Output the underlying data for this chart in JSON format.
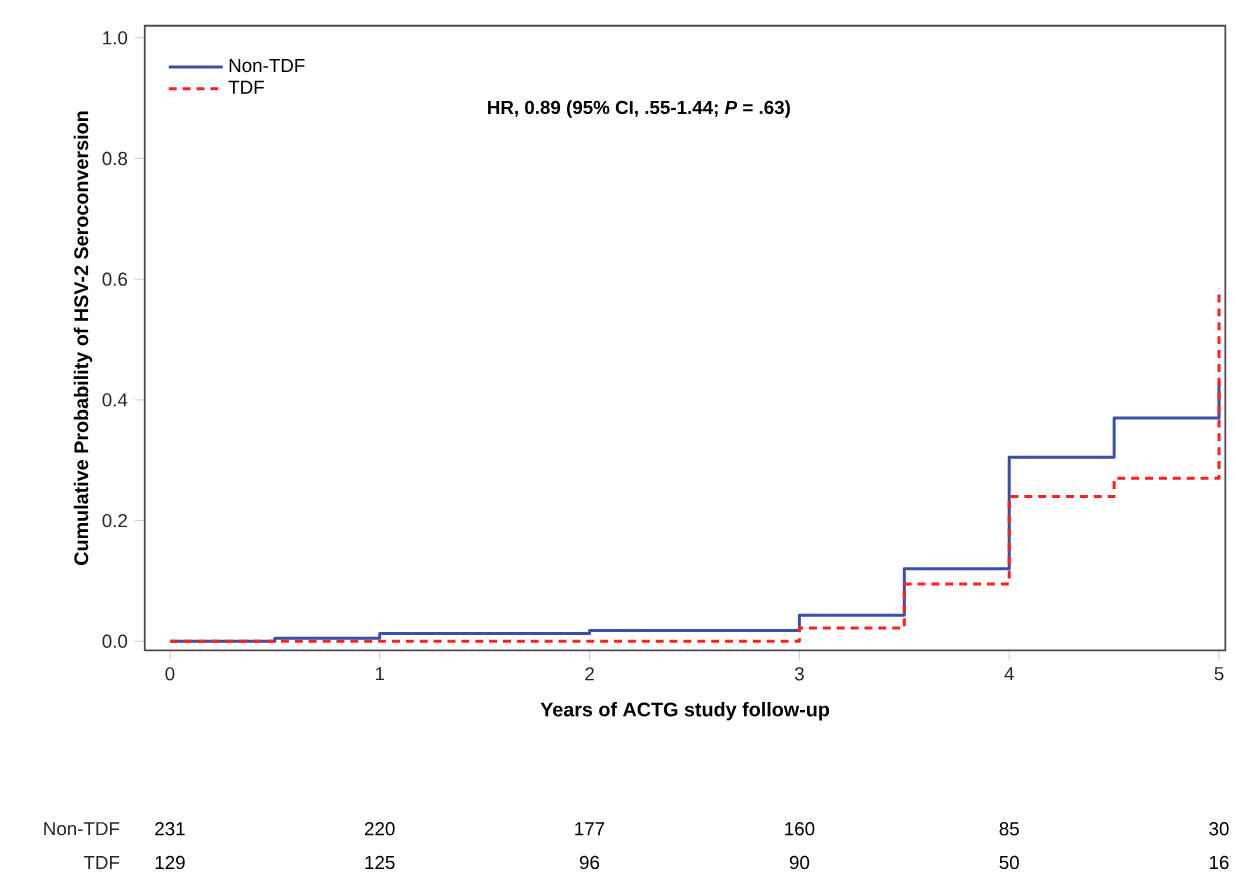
{
  "chart_data": {
    "type": "step",
    "xlabel": "Years of ACTG study follow-up",
    "ylabel": "Cumulative Probability of HSV-2 Seroconversion",
    "xlim": [
      -0.12,
      5.03
    ],
    "ylim": [
      -0.015,
      1.02
    ],
    "xticks": [
      0,
      1,
      2,
      3,
      4,
      5
    ],
    "yticks": [
      {
        "value": 0,
        "label": "0.0"
      },
      0.2,
      0.4,
      0.6,
      0.8,
      {
        "value": 1,
        "label": "1.0"
      }
    ],
    "series": [
      {
        "name": "Non-TDF",
        "color": "#3a4fa8",
        "line_style": "solid",
        "x": [
          0,
          0.5,
          1,
          2,
          3,
          3.5,
          4,
          4.5,
          5
        ],
        "values": [
          0,
          0.005,
          0.013,
          0.018,
          0.043,
          0.12,
          0.305,
          0.37,
          0.43
        ]
      },
      {
        "name": "TDF",
        "color": "#ff2020",
        "line_style": "dashed",
        "x": [
          0,
          3,
          3.5,
          4,
          4.5,
          5
        ],
        "values": [
          0,
          0.022,
          0.095,
          0.24,
          0.27,
          0.585
        ]
      }
    ],
    "legend": "top left",
    "grid": false,
    "marker": "none",
    "annotations": [
      "HR, 0.89 (95% CI, .55-1.44; *P* = .63)",
      "Non-TDF",
      "231",
      "220",
      "177",
      "160",
      "85",
      "30",
      "TDF",
      "129",
      "125",
      "96",
      "90",
      "50",
      "16"
    ]
  }
}
